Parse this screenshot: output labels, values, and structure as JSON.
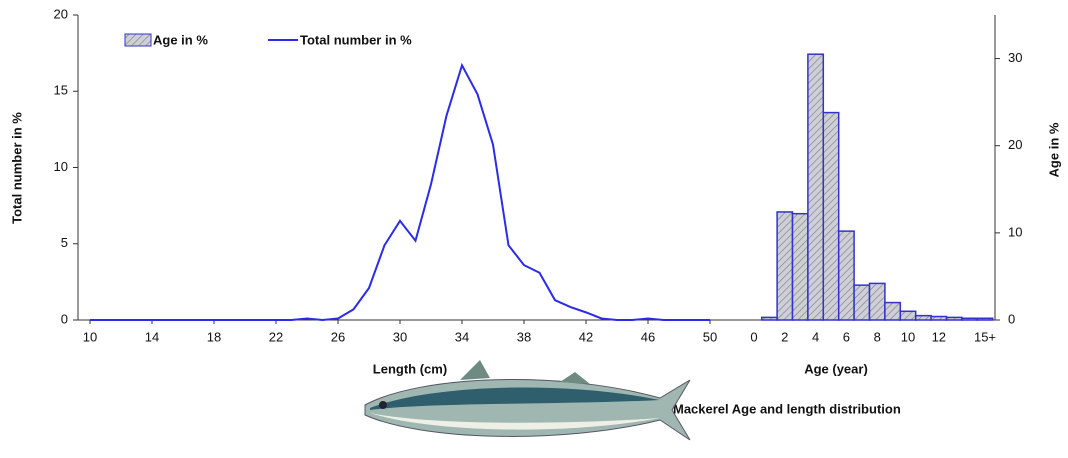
{
  "chart_data": [
    {
      "type": "line",
      "xlabel": "Length (cm)",
      "ylabel": "Total number in %",
      "x": [
        10,
        11,
        12,
        13,
        14,
        15,
        16,
        17,
        18,
        19,
        20,
        21,
        22,
        23,
        24,
        25,
        26,
        27,
        28,
        29,
        30,
        31,
        32,
        33,
        34,
        35,
        36,
        37,
        38,
        39,
        40,
        41,
        42,
        43,
        44,
        45,
        46,
        47,
        48,
        49,
        50
      ],
      "series": [
        {
          "name": "Total number in %",
          "color": "#2b2be8",
          "values": [
            0,
            0,
            0,
            0,
            0,
            0,
            0,
            0,
            0,
            0,
            0,
            0,
            0,
            0,
            0.1,
            0,
            0.1,
            0.7,
            2.1,
            4.9,
            6.5,
            5.2,
            8.9,
            13.4,
            16.7,
            14.8,
            11.5,
            4.9,
            3.6,
            3.1,
            1.3,
            0.85,
            0.5,
            0.1,
            0,
            0,
            0.1,
            0,
            0,
            0,
            0
          ]
        }
      ],
      "xlim": [
        10,
        50
      ],
      "xticks": [
        10,
        14,
        18,
        22,
        26,
        30,
        34,
        38,
        42,
        46,
        50
      ],
      "ylim": [
        0,
        20
      ],
      "yticks": [
        0,
        5,
        10,
        15,
        20
      ]
    },
    {
      "type": "bar",
      "xlabel": "Age (year)",
      "y2label": "Age in %",
      "categories": [
        "0",
        null,
        "2",
        null,
        "4",
        null,
        "6",
        null,
        "8",
        null,
        "10",
        null,
        "12",
        null,
        null,
        "15+"
      ],
      "series": [
        {
          "name": "Age in %",
          "color": "#3333cc",
          "axis": "y2",
          "values": [
            0,
            0.3,
            12.4,
            12.2,
            30.5,
            23.8,
            10.2,
            4,
            4.2,
            2,
            1,
            0.5,
            0.4,
            0.3,
            0.2,
            0.2
          ]
        }
      ],
      "y2lim": [
        0,
        35
      ],
      "y2ticks": [
        0,
        10,
        20,
        30
      ]
    }
  ],
  "caption": "Mackerel  Age and length distribution"
}
